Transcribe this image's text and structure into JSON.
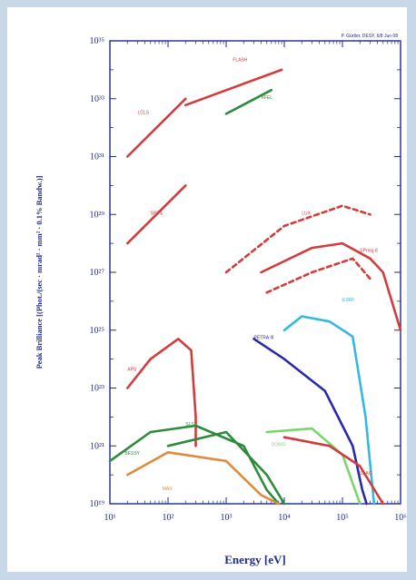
{
  "page": {
    "background": "#c9d8e8",
    "panel": "#ffffff"
  },
  "chart_data": {
    "type": "line",
    "title": "",
    "corner_note": "P. Gürtler, DESY, 6/8 Jun 08",
    "xlabel": "Energy [eV]",
    "ylabel": "Peak Brilliance [(Phot./(sec · mrad² · mm² · 0.1% Bandw.)]",
    "x_scale": "log",
    "y_scale": "log",
    "xlim": [
      10,
      1000000
    ],
    "ylim": [
      1e+19,
      1e+35
    ],
    "x_tick_labels": [
      "10¹",
      "10²",
      "10³",
      "10⁴",
      "10⁵",
      "10⁶"
    ],
    "y_tick_labels": [
      "10¹⁹",
      "10²¹",
      "10²³",
      "10²⁵",
      "10²⁷",
      "10²⁹",
      "10³¹",
      "10³³",
      "10³⁵"
    ],
    "axis_color": "#1f2a8a",
    "grid": false,
    "series": [
      {
        "name": "",
        "color": "#d33c3c",
        "dashed": false,
        "x": [
          20,
          200
        ],
        "y": [
          1e+31,
          1e+33
        ]
      },
      {
        "name": "",
        "color": "#d33c3c",
        "dashed": false,
        "x": [
          20,
          200
        ],
        "y": [
          1e+28,
          1e+30
        ]
      },
      {
        "name": "",
        "color": "#d33c3c",
        "dashed": false,
        "x": [
          200,
          9000
        ],
        "y": [
          6e+32,
          1e+34
        ]
      },
      {
        "name": "",
        "color": "#2e8b3e",
        "dashed": false,
        "x": [
          1000,
          6000
        ],
        "y": [
          3e+32,
          2e+33
        ]
      },
      {
        "name": "",
        "color": "#d33c3c",
        "dashed": false,
        "x": [
          4000,
          30000,
          100000,
          300000,
          500000,
          1000000
        ],
        "y": [
          1e+27,
          7e+27,
          1e+28,
          3e+27,
          1e+27,
          1e+25
        ]
      },
      {
        "name": "",
        "color": "#d33c3c",
        "dashed": true,
        "x": [
          1000,
          10000,
          100000,
          300000
        ],
        "y": [
          1e+27,
          4e+28,
          2e+29,
          1e+29
        ]
      },
      {
        "name": "",
        "color": "#d33c3c",
        "dashed": true,
        "x": [
          5000,
          30000,
          150000,
          300000
        ],
        "y": [
          2e+26,
          1e+27,
          3e+27,
          6e+26
        ]
      },
      {
        "name": "",
        "color": "#d33c3c",
        "dashed": false,
        "x": [
          20,
          50,
          150,
          250,
          300,
          300
        ],
        "y": [
          1e+23,
          1e+24,
          5e+24,
          2e+24,
          1e+22,
          1e+21
        ]
      },
      {
        "name": "",
        "color": "#2a2aa8",
        "dashed": false,
        "x": [
          3000,
          10000,
          50000,
          150000,
          220000,
          260000
        ],
        "y": [
          5e+24,
          1e+24,
          8e+22,
          1e+21,
          3e+19,
          1e+19
        ]
      },
      {
        "name": "",
        "color": "#35b8e0",
        "dashed": false,
        "x": [
          10000,
          20000,
          60000,
          150000,
          250000,
          350000
        ],
        "y": [
          1e+25,
          3e+25,
          2e+25,
          6e+24,
          1e+22,
          1e+19
        ]
      },
      {
        "name": "",
        "color": "#2e8b3e",
        "dashed": false,
        "x": [
          10,
          50,
          300,
          2000,
          5000,
          8000
        ],
        "y": [
          3e+20,
          3e+21,
          5e+21,
          1e+21,
          3e+19,
          1e+19
        ]
      },
      {
        "name": "",
        "color": "#e08a3c",
        "dashed": false,
        "x": [
          20,
          100,
          1000,
          4000,
          8000
        ],
        "y": [
          1e+20,
          6e+20,
          3e+20,
          2e+19,
          1e+19
        ]
      },
      {
        "name": "",
        "color": "#2e8b3e",
        "dashed": false,
        "x": [
          100,
          1000,
          5000,
          10000
        ],
        "y": [
          1e+21,
          3e+21,
          1e+20,
          1e+19
        ]
      },
      {
        "name": "",
        "color": "#7ad66a",
        "dashed": false,
        "x": [
          5000,
          30000,
          100000,
          200000
        ],
        "y": [
          3e+21,
          4e+21,
          5e+20,
          1e+19
        ]
      },
      {
        "name": "",
        "color": "#d33c3c",
        "dashed": false,
        "x": [
          10000,
          60000,
          200000,
          500000
        ],
        "y": [
          2e+21,
          1e+21,
          2e+20,
          1e+19
        ]
      }
    ],
    "annotations": [
      {
        "text": "FLASH",
        "x": 1300,
        "y": 2e+34,
        "color": "#d33c3c"
      },
      {
        "text": "XFEL",
        "x": 4000,
        "y": 1e+33,
        "color": "#2e8b3e"
      },
      {
        "text": "LCLS",
        "x": 30,
        "y": 3e+32,
        "color": "#d33c3c"
      },
      {
        "text": "SPPS",
        "x": 50,
        "y": 1e+29,
        "color": "#d33c3c"
      },
      {
        "text": "APS",
        "x": 20,
        "y": 4e+23,
        "color": "#d33c3c"
      },
      {
        "text": "PETRA III",
        "x": 3000,
        "y": 5e+24,
        "color": "#2a2aa8"
      },
      {
        "text": "ESRF",
        "x": 100000,
        "y": 1e+26,
        "color": "#35b8e0"
      },
      {
        "text": "BESSY",
        "x": 18,
        "y": 5e+20,
        "color": "#2e8b3e"
      },
      {
        "text": "MAX",
        "x": 80,
        "y": 3e+19,
        "color": "#e08a3c"
      },
      {
        "text": "SLS",
        "x": 200,
        "y": 5e+21,
        "color": "#2e8b3e"
      },
      {
        "text": "DORIS",
        "x": 6000,
        "y": 1e+21,
        "color": "#7ad66a"
      },
      {
        "text": "SLAC",
        "x": 200000,
        "y": 1e+20,
        "color": "#d33c3c"
      },
      {
        "text": "SPring-8",
        "x": 200000,
        "y": 5e+27,
        "color": "#d33c3c"
      },
      {
        "text": "LUX",
        "x": 20000,
        "y": 1e+29,
        "color": "#d33c3c"
      }
    ]
  }
}
